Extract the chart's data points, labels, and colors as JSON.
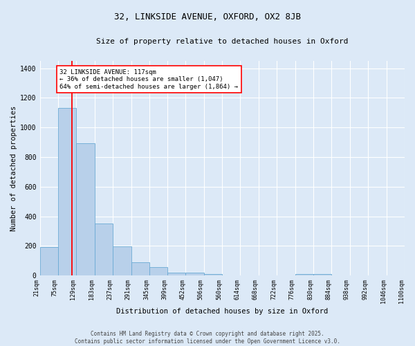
{
  "title1": "32, LINKSIDE AVENUE, OXFORD, OX2 8JB",
  "title2": "Size of property relative to detached houses in Oxford",
  "xlabel": "Distribution of detached houses by size in Oxford",
  "ylabel": "Number of detached properties",
  "annotation_title": "32 LINKSIDE AVENUE: 117sqm",
  "annotation_line2": "← 36% of detached houses are smaller (1,047)",
  "annotation_line3": "64% of semi-detached houses are larger (1,864) →",
  "footer1": "Contains HM Land Registry data © Crown copyright and database right 2025.",
  "footer2": "Contains public sector information licensed under the Open Government Licence v3.0.",
  "bar_edges": [
    21,
    75,
    129,
    183,
    237,
    291,
    345,
    399,
    452,
    506,
    560,
    614,
    668,
    722,
    776,
    830,
    884,
    938,
    992,
    1046,
    1100
  ],
  "bar_heights": [
    193,
    1130,
    893,
    350,
    197,
    90,
    57,
    20,
    20,
    12,
    0,
    0,
    0,
    0,
    10,
    10,
    0,
    0,
    0,
    0
  ],
  "bar_color": "#b8d0ea",
  "bar_edgecolor": "#6aaad4",
  "red_line_x": 117,
  "ylim": [
    0,
    1450
  ],
  "background_color": "#dce9f7",
  "grid_color": "#ffffff",
  "title1_fontsize": 9,
  "title2_fontsize": 8,
  "ylabel_fontsize": 7.5,
  "xlabel_fontsize": 7.5,
  "tick_fontsize": 6
}
